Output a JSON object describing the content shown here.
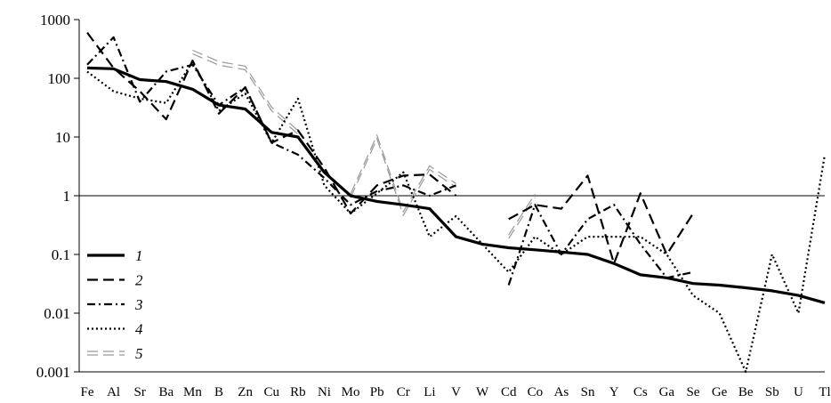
{
  "chart_data": {
    "type": "line",
    "y_scale": "log",
    "ylim": [
      0.001,
      1000
    ],
    "y_ticks": [
      {
        "value": 1000,
        "label": "1000"
      },
      {
        "value": 100,
        "label": "100"
      },
      {
        "value": 10,
        "label": "10"
      },
      {
        "value": 1,
        "label": "1"
      },
      {
        "value": 0.1,
        "label": "0.1"
      },
      {
        "value": 0.01,
        "label": "0.01"
      },
      {
        "value": 0.001,
        "label": "0.001"
      }
    ],
    "reference_line": 1,
    "categories": [
      "Fe",
      "Al",
      "Sr",
      "Ba",
      "Mn",
      "B",
      "Zn",
      "Cu",
      "Rb",
      "Ni",
      "Mo",
      "Pb",
      "Cr",
      "Li",
      "V",
      "W",
      "Cd",
      "Co",
      "As",
      "Sn",
      "Y",
      "Cs",
      "Ga",
      "Se",
      "Ge",
      "Be",
      "Sb",
      "U",
      "Tl"
    ],
    "legend_position": "left",
    "series": [
      {
        "name": "1",
        "style": "solid",
        "color": "#000000",
        "values": [
          150,
          145,
          95,
          88,
          65,
          35,
          30,
          12,
          10,
          2.5,
          1.0,
          0.8,
          0.7,
          0.6,
          0.2,
          0.15,
          0.13,
          0.12,
          0.11,
          0.1,
          0.07,
          0.045,
          0.04,
          0.032,
          0.03,
          0.027,
          0.024,
          0.02,
          0.015
        ]
      },
      {
        "name": "2",
        "style": "dashed",
        "color": "#000000",
        "values": [
          600,
          150,
          60,
          20,
          200,
          25,
          70,
          8,
          13,
          3.0,
          0.5,
          1.5,
          2.2,
          2.3,
          1.0,
          null,
          0.4,
          0.7,
          0.6,
          2.2,
          0.07,
          1.1,
          0.1,
          0.5,
          null,
          null,
          null,
          null,
          null
        ]
      },
      {
        "name": "3",
        "style": "dashdot",
        "color": "#000000",
        "values": [
          170,
          500,
          40,
          130,
          170,
          35,
          70,
          8,
          5,
          2,
          0.7,
          1.2,
          1.5,
          1.0,
          1.5,
          null,
          0.03,
          0.7,
          0.1,
          0.4,
          0.7,
          0.15,
          0.04,
          0.05,
          null,
          null,
          null,
          null,
          null
        ]
      },
      {
        "name": "4",
        "style": "dotted",
        "color": "#000000",
        "values": [
          130,
          60,
          45,
          38,
          190,
          28,
          55,
          8,
          45,
          1.5,
          0.5,
          1.1,
          2.5,
          0.2,
          0.45,
          0.15,
          0.05,
          0.2,
          0.1,
          0.2,
          0.2,
          0.2,
          0.1,
          0.02,
          0.01,
          0.001,
          0.1,
          0.01,
          5
        ]
      },
      {
        "name": "5",
        "style": "double",
        "color": "#999999",
        "values": [
          null,
          null,
          null,
          null,
          280,
          180,
          150,
          30,
          12,
          null,
          1.0,
          10,
          0.5,
          3,
          1.5,
          null,
          0.2,
          1.0,
          null,
          null,
          null,
          null,
          null,
          null,
          null,
          null,
          null,
          null,
          null
        ]
      }
    ]
  }
}
